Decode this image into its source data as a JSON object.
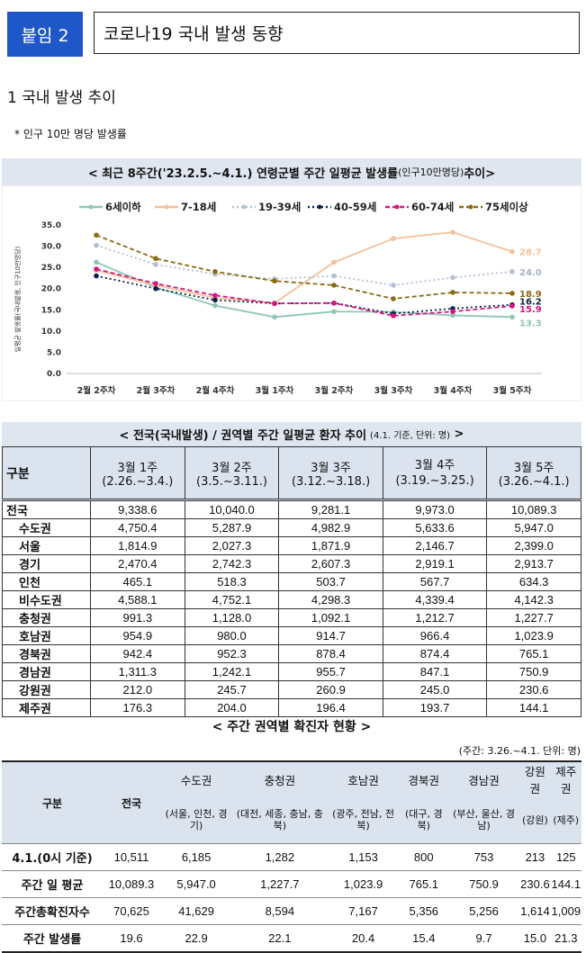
{
  "header": {
    "badge": "붙임 2",
    "title": "코로나19 국내 발생 동향"
  },
  "section": {
    "title": "1  국내 발생 추이",
    "note": "* 인구 10만 명당 발생률"
  },
  "chart_title": {
    "main": "< 최근 8주간('23.2.5.~4.1.) 연령군별 주간 일평균 발생률",
    "paren": "(인구10만명당)",
    "suffix": " 추이>"
  },
  "chart_data": {
    "type": "line",
    "title": "최근 8주간('23.2.5.~4.1.) 연령군별 주간 일평균 발생률(인구10만명당) 추이",
    "ylabel": "일평균 발생률(국내발생, 인구10만명당)",
    "ylim": [
      0,
      35
    ],
    "yticks": [
      "0.0",
      "5.0",
      "10.0",
      "15.0",
      "20.0",
      "25.0",
      "30.0",
      "35.0"
    ],
    "categories": [
      "2월 2주차",
      "2월 3주차",
      "2월 4주차",
      "3월 1주차",
      "3월 2주차",
      "3월 3주차",
      "3월 4주차",
      "3월 5주차"
    ],
    "series": [
      {
        "name": "6세이하",
        "color": "#8fc7b4",
        "dash": "solid",
        "values": [
          26.2,
          20.3,
          16.0,
          13.3,
          14.6,
          14.5,
          13.7,
          13.3
        ],
        "last_label": "13.3"
      },
      {
        "name": "7-18세",
        "color": "#f5c09a",
        "dash": "solid",
        "values": [
          24.3,
          20.8,
          17.8,
          16.6,
          26.2,
          31.8,
          33.3,
          28.7
        ],
        "last_label": "28.7"
      },
      {
        "name": "19-39세",
        "color": "#b4bed6",
        "dash": "dot",
        "values": [
          30.2,
          25.7,
          23.4,
          22.3,
          23.0,
          20.8,
          22.6,
          24.0
        ],
        "last_label": "24.0"
      },
      {
        "name": "40-59세",
        "color": "#0d1f4a",
        "dash": "dot",
        "values": [
          23.0,
          20.0,
          17.3,
          16.5,
          16.6,
          14.1,
          15.3,
          16.2
        ],
        "last_label": "16.2"
      },
      {
        "name": "60-74세",
        "color": "#d8157f",
        "dash": "dash",
        "values": [
          24.6,
          21.2,
          18.4,
          16.5,
          16.6,
          13.6,
          14.6,
          15.9
        ],
        "last_label": "15.9"
      },
      {
        "name": "75세이상",
        "color": "#8a6a12",
        "dash": "dash",
        "values": [
          32.6,
          27.1,
          24.0,
          21.8,
          20.8,
          17.6,
          19.1,
          18.9
        ],
        "last_label": "18.9"
      }
    ]
  },
  "table1": {
    "title": "< 전국(국내발생) / 권역별 주간 일평균 환자 추이",
    "title_note": "(4.1. 기준, 단위: 명)",
    "title_end": ">",
    "row_header": "구분",
    "columns": [
      {
        "week": "3월 1주",
        "range": "(2.26.~3.4.)"
      },
      {
        "week": "3월 2주",
        "range": "(3.5.~3.11.)"
      },
      {
        "week": "3월 3주",
        "range": "(3.12.~3.18.)"
      },
      {
        "week": "3월 4주",
        "range": "(3.19.~3.25.)"
      },
      {
        "week": "3월 5주",
        "range": "(3.26.~4.1.)"
      }
    ],
    "rows": [
      {
        "label": "전국",
        "values": [
          "9,338.6",
          "10,040.0",
          "9,281.1",
          "9,973.0",
          "10,089.3"
        ]
      },
      {
        "label": "수도권",
        "values": [
          "4,750.4",
          "5,287.9",
          "4,982.9",
          "5,633.6",
          "5,947.0"
        ]
      },
      {
        "label": "서울",
        "values": [
          "1,814.9",
          "2,027.3",
          "1,871.9",
          "2,146.7",
          "2,399.0"
        ]
      },
      {
        "label": "경기",
        "values": [
          "2,470.4",
          "2,742.3",
          "2,607.3",
          "2,919.1",
          "2,913.7"
        ]
      },
      {
        "label": "인천",
        "values": [
          "465.1",
          "518.3",
          "503.7",
          "567.7",
          "634.3"
        ]
      },
      {
        "label": "비수도권",
        "values": [
          "4,588.1",
          "4,752.1",
          "4,298.3",
          "4,339.4",
          "4,142.3"
        ]
      },
      {
        "label": "충청권",
        "values": [
          "991.3",
          "1,128.0",
          "1,092.1",
          "1,212.7",
          "1,227.7"
        ]
      },
      {
        "label": "호남권",
        "values": [
          "954.9",
          "980.0",
          "914.7",
          "966.4",
          "1,023.9"
        ]
      },
      {
        "label": "경북권",
        "values": [
          "942.4",
          "952.3",
          "878.4",
          "874.4",
          "765.1"
        ]
      },
      {
        "label": "경남권",
        "values": [
          "1,311.3",
          "1,242.1",
          "955.7",
          "847.1",
          "750.9"
        ]
      },
      {
        "label": "강원권",
        "values": [
          "212.0",
          "245.7",
          "260.9",
          "245.0",
          "230.6"
        ]
      },
      {
        "label": "제주권",
        "values": [
          "176.3",
          "204.0",
          "196.4",
          "193.7",
          "144.1"
        ]
      }
    ]
  },
  "table2": {
    "title": "< 주간 권역별 확진자 현황 >",
    "unit": "(주간: 3.26.~4.1. 단위: 명)",
    "row_header": "구분",
    "total_header": "전국",
    "regions": [
      {
        "name": "수도권",
        "sub": "(서울, 인천, 경기)"
      },
      {
        "name": "충청권",
        "sub": "(대전, 세종, 충남, 충북)"
      },
      {
        "name": "호남권",
        "sub": "(광주, 전남, 전북)"
      },
      {
        "name": "경북권",
        "sub": "(대구, 경북)"
      },
      {
        "name": "경남권",
        "sub": "(부산, 울산, 경남)"
      },
      {
        "name": "강원권",
        "sub": "(강원)"
      },
      {
        "name": "제주권",
        "sub": "(제주)"
      }
    ],
    "rows": [
      {
        "label": "4.1.(0시 기준)",
        "values": [
          "10,511",
          "6,185",
          "1,282",
          "1,153",
          "800",
          "753",
          "213",
          "125"
        ]
      },
      {
        "label": "주간 일 평균",
        "values": [
          "10,089.3",
          "5,947.0",
          "1,227.7",
          "1,023.9",
          "765.1",
          "750.9",
          "230.6",
          "144.1"
        ]
      },
      {
        "label": "주간총확진자수",
        "values": [
          "70,625",
          "41,629",
          "8,594",
          "7,167",
          "5,356",
          "5,256",
          "1,614",
          "1,009"
        ]
      },
      {
        "label": "주간 발생률",
        "values": [
          "19.6",
          "22.9",
          "22.1",
          "20.4",
          "15.4",
          "9.7",
          "15.0",
          "21.3"
        ]
      }
    ]
  }
}
